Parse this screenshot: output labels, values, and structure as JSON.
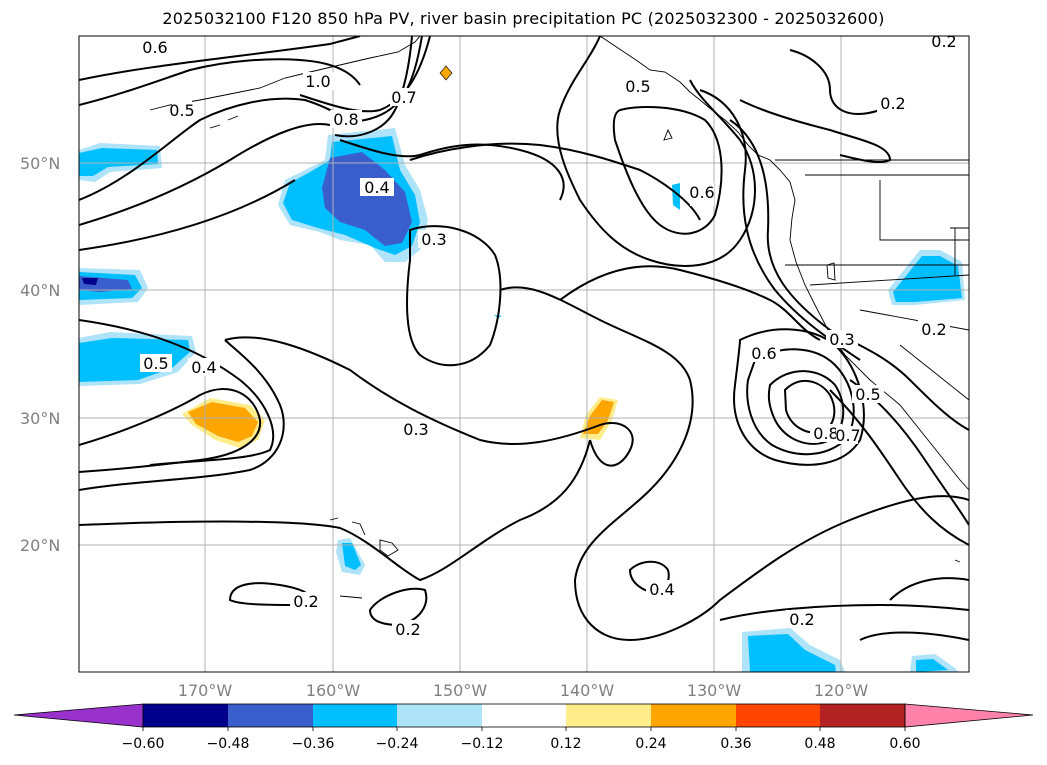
{
  "title": "2025032100 F120 850 hPa PV, river basin precipitation PC (2025032300 - 2025032600)",
  "map": {
    "lat_labels": [
      "50°N",
      "40°N",
      "30°N",
      "20°N"
    ],
    "lon_labels": [
      "170°W",
      "160°W",
      "150°W",
      "140°W",
      "130°W",
      "120°W"
    ],
    "contour_labels": [
      "0.6",
      "1.0",
      "0.7",
      "0.5",
      "0.8",
      "0.4",
      "0.5",
      "0.2",
      "0.3",
      "0.5",
      "0.4",
      "0.6",
      "0.3",
      "0.6",
      "0.3",
      "0.5",
      "0.8",
      "0.7",
      "0.2",
      "0.4",
      "0.2",
      "0.2",
      "0.2",
      "0.2"
    ]
  },
  "colorbar": {
    "ticks": [
      "−0.60",
      "−0.48",
      "−0.36",
      "−0.24",
      "−0.12",
      "0.12",
      "0.24",
      "0.36",
      "0.48",
      "0.60"
    ],
    "colors": [
      "#9932CC",
      "#00008B",
      "#3A5FCD",
      "#00BFFF",
      "#AEE3FA",
      "#FFFFFF",
      "#FFEC8B",
      "#FFA500",
      "#FF4500",
      "#B22222",
      "#FF82AB"
    ]
  }
}
